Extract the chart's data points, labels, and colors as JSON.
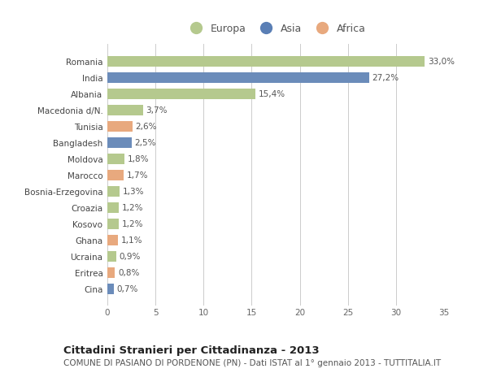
{
  "categories": [
    "Romania",
    "India",
    "Albania",
    "Macedonia d/N.",
    "Tunisia",
    "Bangladesh",
    "Moldova",
    "Marocco",
    "Bosnia-Erzegovina",
    "Croazia",
    "Kosovo",
    "Ghana",
    "Ucraina",
    "Eritrea",
    "Cina"
  ],
  "values": [
    33.0,
    27.2,
    15.4,
    3.7,
    2.6,
    2.5,
    1.8,
    1.7,
    1.3,
    1.2,
    1.2,
    1.1,
    0.9,
    0.8,
    0.7
  ],
  "labels": [
    "33,0%",
    "27,2%",
    "15,4%",
    "3,7%",
    "2,6%",
    "2,5%",
    "1,8%",
    "1,7%",
    "1,3%",
    "1,2%",
    "1,2%",
    "1,1%",
    "0,9%",
    "0,8%",
    "0,7%"
  ],
  "continents": [
    "Europa",
    "Asia",
    "Europa",
    "Europa",
    "Africa",
    "Asia",
    "Europa",
    "Africa",
    "Europa",
    "Europa",
    "Europa",
    "Africa",
    "Europa",
    "Africa",
    "Asia"
  ],
  "colors": {
    "Europa": "#b5c98e",
    "Asia": "#6b8cba",
    "Africa": "#e8a97e"
  },
  "legend_colors": {
    "Europa": "#b5c98e",
    "Asia": "#5a7fb5",
    "Africa": "#e8a97e"
  },
  "xlim": [
    0,
    35
  ],
  "xticks": [
    0,
    5,
    10,
    15,
    20,
    25,
    30,
    35
  ],
  "background_color": "#ffffff",
  "grid_color": "#cccccc",
  "title": "Cittadini Stranieri per Cittadinanza - 2013",
  "subtitle": "COMUNE DI PASIANO DI PORDENONE (PN) - Dati ISTAT al 1° gennaio 2013 - TUTTITALIA.IT",
  "title_fontsize": 9.5,
  "subtitle_fontsize": 7.5,
  "label_fontsize": 7.5,
  "tick_fontsize": 7.5,
  "legend_fontsize": 9
}
